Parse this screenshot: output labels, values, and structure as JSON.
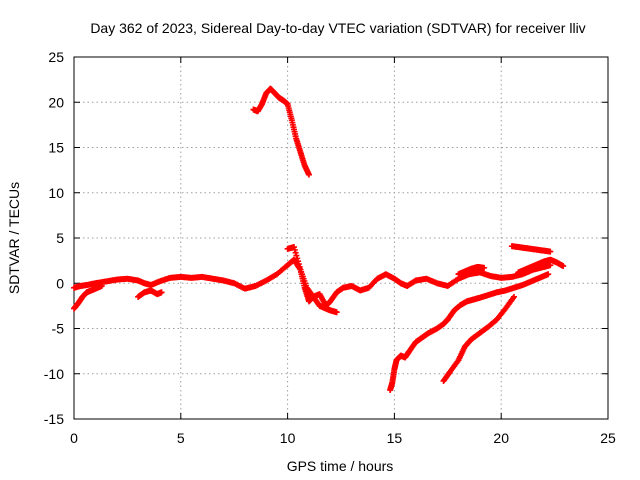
{
  "chart_data": {
    "type": "scatter",
    "title": "Day 362 of 2023, Sidereal Day-to-day VTEC variation (SDTVAR) for receiver lliv",
    "xlabel": "GPS time / hours",
    "ylabel": "SDTVAR / TECUs",
    "xlim": [
      0,
      25
    ],
    "ylim": [
      -15,
      25
    ],
    "xticks": [
      "0",
      "5",
      "10",
      "15",
      "20",
      "25"
    ],
    "yticks": [
      "25",
      "20",
      "15",
      "10",
      "5",
      "0",
      "-5",
      "-10",
      "-15"
    ],
    "grid": true,
    "marker": "+",
    "color": "#ff0000",
    "series": [
      {
        "x": [
          0.0,
          0.3,
          0.6,
          1.0,
          1.5,
          2.0,
          2.5,
          3.0,
          3.3,
          3.6,
          4.0,
          4.5,
          5.0,
          5.5,
          6.0,
          6.5,
          7.0,
          7.5,
          8.0,
          8.5,
          9.0,
          9.5,
          10.0,
          10.3,
          10.6,
          10.8,
          11.0,
          11.2,
          11.5,
          11.8,
          12.0,
          12.3,
          12.6,
          13.0,
          13.4,
          13.8,
          14.2,
          14.6,
          15.0,
          15.3,
          15.6,
          16.0,
          16.5,
          17.0,
          17.5,
          18.0,
          18.5,
          19.0,
          19.5,
          20.0,
          20.5,
          21.0,
          21.5,
          22.0,
          22.3
        ],
        "y": [
          -0.5,
          -0.3,
          -0.2,
          0.0,
          0.2,
          0.4,
          0.5,
          0.3,
          0.0,
          -0.2,
          0.2,
          0.6,
          0.7,
          0.6,
          0.7,
          0.5,
          0.3,
          0.0,
          -0.6,
          -0.3,
          0.3,
          1.0,
          2.0,
          2.6,
          1.5,
          -0.5,
          -2.0,
          -1.5,
          -1.2,
          -2.5,
          -2.0,
          -1.0,
          -0.5,
          -0.3,
          -0.8,
          -0.5,
          0.5,
          1.0,
          0.5,
          0.0,
          -0.3,
          0.3,
          0.5,
          0.0,
          -0.3,
          0.5,
          1.0,
          1.2,
          0.8,
          0.6,
          0.7,
          1.0,
          1.5,
          1.8,
          2.0
        ]
      },
      {
        "x": [
          0.0,
          0.2,
          0.4,
          0.6,
          0.8,
          1.0,
          1.3
        ],
        "y": [
          -2.8,
          -2.2,
          -1.5,
          -1.0,
          -0.8,
          -0.6,
          -0.3
        ]
      },
      {
        "x": [
          3.0,
          3.3,
          3.6,
          3.9,
          4.1
        ],
        "y": [
          -1.5,
          -1.0,
          -0.8,
          -1.2,
          -1.0
        ]
      },
      {
        "x": [
          10.0,
          10.3,
          10.6,
          10.9,
          11.2,
          11.5,
          11.8,
          12.0,
          12.3
        ],
        "y": [
          3.8,
          4.0,
          1.5,
          -0.5,
          -1.5,
          -2.5,
          -2.8,
          -3.0,
          -3.2
        ]
      },
      {
        "x": [
          8.4,
          8.6,
          8.8,
          9.0,
          9.2,
          9.4,
          9.6,
          9.8,
          10.0,
          10.2,
          10.4,
          10.6,
          10.8,
          11.0
        ],
        "y": [
          19.2,
          19.0,
          19.8,
          21.0,
          21.5,
          21.0,
          20.5,
          20.2,
          19.8,
          18.0,
          16.0,
          14.5,
          13.0,
          12.0
        ]
      },
      {
        "x": [
          14.8,
          14.9,
          15.0,
          15.1,
          15.3,
          15.5,
          15.7,
          16.0,
          16.3,
          16.6,
          17.0,
          17.3,
          17.5
        ],
        "y": [
          -11.8,
          -11.0,
          -9.5,
          -8.5,
          -8.0,
          -8.2,
          -7.5,
          -6.5,
          -6.0,
          -5.5,
          -5.0,
          -4.5,
          -4.0
        ]
      },
      {
        "x": [
          17.5,
          17.8,
          18.1,
          18.4,
          18.7,
          19.0,
          19.4,
          19.8,
          20.2,
          20.6,
          21.0,
          21.4,
          21.8,
          22.2
        ],
        "y": [
          -4.0,
          -3.0,
          -2.4,
          -2.0,
          -1.8,
          -1.6,
          -1.3,
          -1.0,
          -0.8,
          -0.5,
          -0.2,
          0.2,
          0.6,
          1.0
        ]
      },
      {
        "x": [
          17.3,
          17.6,
          18.0,
          18.3,
          18.6,
          19.0,
          19.4,
          19.8,
          20.2,
          20.6
        ],
        "y": [
          -10.8,
          -9.8,
          -8.5,
          -7.0,
          -6.2,
          -5.5,
          -4.8,
          -4.0,
          -2.8,
          -1.5
        ]
      },
      {
        "x": [
          20.5,
          20.8,
          21.1,
          21.4,
          21.7,
          22.0,
          22.3
        ],
        "y": [
          4.1,
          4.0,
          3.9,
          3.8,
          3.7,
          3.6,
          3.5
        ]
      },
      {
        "x": [
          18.0,
          18.3,
          18.6,
          18.9,
          19.2
        ],
        "y": [
          1.0,
          1.3,
          1.6,
          1.8,
          1.7
        ]
      },
      {
        "x": [
          20.8,
          21.2,
          21.6,
          22.0,
          22.3,
          22.6,
          22.9
        ],
        "y": [
          1.2,
          1.6,
          2.0,
          2.4,
          2.6,
          2.3,
          1.9
        ]
      }
    ]
  }
}
